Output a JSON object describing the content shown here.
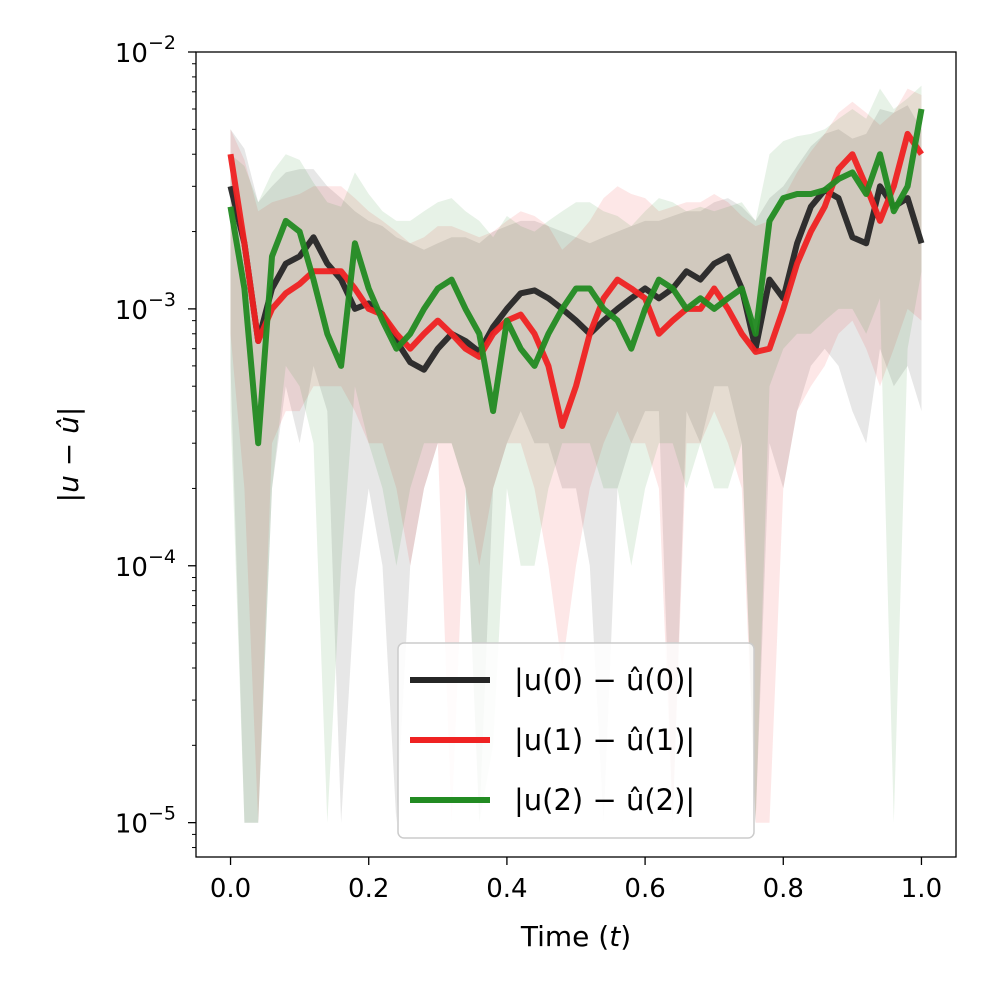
{
  "chart_data": {
    "type": "line",
    "xlabel": "Time (t)",
    "ylabel": "|u − û|",
    "xlim": [
      -0.05,
      1.05
    ],
    "ylim": [
      7.35e-06,
      0.01
    ],
    "yscale": "log",
    "xticks": [
      "0.0",
      "0.2",
      "0.4",
      "0.6",
      "0.8",
      "1.0"
    ],
    "xtick_values": [
      0.0,
      0.2,
      0.4,
      0.6,
      0.8,
      1.0
    ],
    "yticks": [
      {
        "value": 0.01,
        "base": "10",
        "exp": "−2"
      },
      {
        "value": 0.001,
        "base": "10",
        "exp": "−3"
      },
      {
        "value": 0.0001,
        "base": "10",
        "exp": "−4"
      },
      {
        "value": 1e-05,
        "base": "10",
        "exp": "−5"
      }
    ],
    "legend_position": "lower-center",
    "grid": false,
    "band_floor": 1e-05,
    "x": [
      0.0,
      0.02,
      0.04,
      0.06,
      0.08,
      0.1,
      0.12,
      0.14,
      0.16,
      0.18,
      0.2,
      0.22,
      0.24,
      0.26,
      0.28,
      0.3,
      0.32,
      0.34,
      0.36,
      0.38,
      0.4,
      0.42,
      0.44,
      0.46,
      0.48,
      0.5,
      0.52,
      0.54,
      0.56,
      0.58,
      0.6,
      0.62,
      0.64,
      0.66,
      0.68,
      0.7,
      0.72,
      0.74,
      0.76,
      0.78,
      0.8,
      0.82,
      0.84,
      0.86,
      0.88,
      0.9,
      0.92,
      0.94,
      0.96,
      0.98,
      1.0
    ],
    "series": [
      {
        "name": "|u(0) − û(0)|",
        "color": "#262626",
        "values": [
          0.003,
          0.0018,
          0.00075,
          0.0012,
          0.0015,
          0.0016,
          0.0019,
          0.0015,
          0.0013,
          0.001,
          0.00105,
          0.00095,
          0.00075,
          0.00062,
          0.00058,
          0.0007,
          0.0008,
          0.00075,
          0.00068,
          0.00085,
          0.001,
          0.00115,
          0.00118,
          0.0011,
          0.001,
          0.0009,
          0.0008,
          0.0009,
          0.001,
          0.0011,
          0.0012,
          0.0011,
          0.0012,
          0.0014,
          0.0013,
          0.0015,
          0.0016,
          0.0012,
          0.0007,
          0.0013,
          0.0011,
          0.0018,
          0.0025,
          0.0029,
          0.0027,
          0.0019,
          0.0018,
          0.003,
          0.0025,
          0.0027,
          0.0018
        ],
        "upper": [
          0.005,
          0.0042,
          0.0026,
          0.003,
          0.0034,
          0.0035,
          0.0035,
          0.003,
          0.0027,
          0.0024,
          0.0022,
          0.0021,
          0.0019,
          0.0018,
          0.0017,
          0.0018,
          0.0019,
          0.0019,
          0.0018,
          0.002,
          0.0021,
          0.0022,
          0.0022,
          0.0021,
          0.002,
          0.0019,
          0.0018,
          0.0019,
          0.002,
          0.0021,
          0.0022,
          0.0022,
          0.0023,
          0.0024,
          0.0024,
          0.0026,
          0.0027,
          0.0025,
          0.0022,
          0.0027,
          0.003,
          0.0036,
          0.0043,
          0.0048,
          0.005,
          0.0046,
          0.0048,
          0.006,
          0.0058,
          0.0062,
          0.005
        ],
        "lower": [
          0.0006,
          1e-05,
          1e-05,
          0.0002,
          0.0005,
          0.0003,
          0.0006,
          0.0004,
          1e-05,
          8e-05,
          0.0002,
          0.0001,
          1e-05,
          0.0001,
          0.0002,
          0.0003,
          0.0003,
          0.0002,
          1e-05,
          0.0002,
          0.0003,
          0.0004,
          0.0003,
          0.0003,
          0.0002,
          0.0002,
          0.0001,
          1e-05,
          0.0002,
          0.0003,
          0.0004,
          0.0004,
          1e-05,
          0.0004,
          0.0003,
          0.0005,
          0.0005,
          0.0003,
          1e-05,
          0.0003,
          0.0002,
          0.0004,
          0.0006,
          0.0007,
          0.0006,
          0.0004,
          0.0003,
          0.0007,
          0.0005,
          0.0006,
          0.0004
        ]
      },
      {
        "name": "|u(1) − û(1)|",
        "color": "#ef2222",
        "values": [
          0.004,
          0.0018,
          0.00075,
          0.001,
          0.00115,
          0.00125,
          0.0014,
          0.0014,
          0.0014,
          0.0012,
          0.001,
          0.00095,
          0.0008,
          0.0007,
          0.0008,
          0.0009,
          0.0008,
          0.0007,
          0.00065,
          0.0008,
          0.0009,
          0.00095,
          0.0008,
          0.0006,
          0.00035,
          0.0005,
          0.0008,
          0.0011,
          0.0013,
          0.0012,
          0.0011,
          0.0008,
          0.0009,
          0.001,
          0.001,
          0.0012,
          0.001,
          0.0008,
          0.00068,
          0.0007,
          0.001,
          0.0015,
          0.002,
          0.0025,
          0.0035,
          0.004,
          0.003,
          0.0022,
          0.003,
          0.0048,
          0.004
        ],
        "upper": [
          0.005,
          0.0038,
          0.0024,
          0.0026,
          0.0027,
          0.0028,
          0.003,
          0.003,
          0.003,
          0.0027,
          0.0024,
          0.0022,
          0.002,
          0.0018,
          0.0019,
          0.0021,
          0.0021,
          0.002,
          0.0019,
          0.002,
          0.0022,
          0.0024,
          0.0023,
          0.0021,
          0.0017,
          0.0019,
          0.0022,
          0.0027,
          0.003,
          0.0028,
          0.0027,
          0.0024,
          0.0025,
          0.0026,
          0.0026,
          0.0028,
          0.0026,
          0.0023,
          0.0021,
          0.0022,
          0.0027,
          0.0034,
          0.0041,
          0.0048,
          0.0058,
          0.0064,
          0.0058,
          0.0052,
          0.0058,
          0.0072,
          0.0068
        ],
        "lower": [
          0.0008,
          0.0002,
          1e-05,
          0.0003,
          0.0004,
          0.0004,
          0.0005,
          0.0005,
          0.0005,
          0.0004,
          0.0003,
          0.0003,
          0.0002,
          0.0001,
          0.0002,
          0.0003,
          1e-05,
          0.0002,
          0.0001,
          0.0002,
          0.0003,
          0.0003,
          0.0002,
          0.0001,
          4e-05,
          0.0001,
          0.0002,
          0.0003,
          0.0004,
          0.0003,
          0.0003,
          0.0002,
          1e-05,
          0.0003,
          0.0003,
          0.0004,
          0.0003,
          0.0002,
          1e-05,
          1e-05,
          0.0002,
          0.0004,
          0.0005,
          0.0006,
          0.0008,
          0.0009,
          0.0007,
          0.0005,
          0.0007,
          0.001,
          0.0009
        ]
      },
      {
        "name": "|u(2) − û(2)|",
        "color": "#228b22",
        "values": [
          0.0025,
          0.0012,
          0.0003,
          0.0016,
          0.0022,
          0.002,
          0.0013,
          0.0008,
          0.0006,
          0.0018,
          0.0012,
          0.0009,
          0.0007,
          0.0008,
          0.001,
          0.0012,
          0.0013,
          0.001,
          0.0008,
          0.0004,
          0.0009,
          0.0007,
          0.0006,
          0.0008,
          0.001,
          0.0012,
          0.0012,
          0.001,
          0.0009,
          0.0007,
          0.001,
          0.0013,
          0.0012,
          0.001,
          0.0011,
          0.001,
          0.0011,
          0.0012,
          0.0008,
          0.0022,
          0.0027,
          0.0028,
          0.0028,
          0.0029,
          0.0032,
          0.0034,
          0.0028,
          0.004,
          0.0024,
          0.003,
          0.006
        ],
        "upper": [
          0.004,
          0.0036,
          0.0026,
          0.0034,
          0.004,
          0.0038,
          0.0031,
          0.0026,
          0.0025,
          0.0034,
          0.0028,
          0.0024,
          0.0022,
          0.0022,
          0.0024,
          0.0026,
          0.0027,
          0.0024,
          0.0022,
          0.0019,
          0.0023,
          0.0021,
          0.002,
          0.0022,
          0.0024,
          0.0026,
          0.0026,
          0.0024,
          0.0023,
          0.0021,
          0.0024,
          0.0027,
          0.0026,
          0.0024,
          0.0025,
          0.0024,
          0.0025,
          0.0026,
          0.0022,
          0.004,
          0.0045,
          0.0047,
          0.0048,
          0.005,
          0.0055,
          0.006,
          0.0055,
          0.0072,
          0.006,
          0.0066,
          0.0074
        ],
        "lower": [
          0.0004,
          1e-05,
          1e-05,
          0.0002,
          0.0006,
          0.0005,
          0.0003,
          1e-05,
          0.0001,
          0.0005,
          0.0003,
          0.0002,
          0.0001,
          0.0002,
          0.0003,
          0.0003,
          0.0003,
          0.0002,
          1e-05,
          2e-05,
          0.0002,
          0.0001,
          0.0001,
          0.0002,
          0.0003,
          0.0003,
          0.0003,
          0.0002,
          0.0002,
          0.0001,
          0.0002,
          0.0003,
          0.0003,
          0.0002,
          0.0003,
          0.0002,
          0.0002,
          0.0003,
          1e-05,
          0.0005,
          0.0007,
          0.0008,
          0.0008,
          0.0009,
          0.001,
          0.001,
          0.0008,
          0.0011,
          1e-05,
          0.0007,
          0.0014
        ]
      }
    ],
    "legend": [
      {
        "pre": "|u(0) − ",
        "hat": "u",
        "post": "(0)|"
      },
      {
        "pre": "|u(1) − ",
        "hat": "u",
        "post": "(1)|"
      },
      {
        "pre": "|u(2) − ",
        "hat": "u",
        "post": "(2)|"
      }
    ]
  }
}
